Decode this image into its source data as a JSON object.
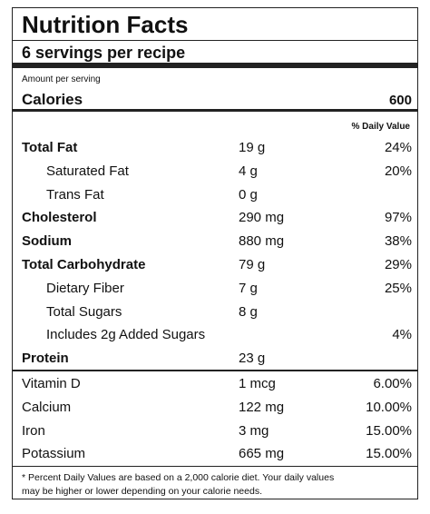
{
  "title": "Nutrition Facts",
  "servings": "6 servings per recipe",
  "amount_label": "Amount per serving",
  "calories": {
    "label": "Calories",
    "value": "600"
  },
  "dv_header": "% Daily Value",
  "nutrients": [
    {
      "name": "Total Fat",
      "amount": "19 g",
      "dv": "24%",
      "sub": [
        {
          "name": "Saturated Fat",
          "amount": "4 g",
          "dv": "20%"
        },
        {
          "name": "Trans Fat",
          "amount": "0 g"
        }
      ]
    },
    {
      "name": "Cholesterol",
      "amount": "290 mg",
      "dv": "97%"
    },
    {
      "name": "Sodium",
      "amount": "880 mg",
      "dv": "38%"
    },
    {
      "name": "Total Carbohydrate",
      "amount": "79 g",
      "dv": "29%",
      "sub": [
        {
          "name": "Dietary Fiber",
          "amount": "7 g",
          "dv": "25%"
        },
        {
          "name": "Total Sugars",
          "amount": "8 g"
        },
        {
          "name": "Includes 2g Added Sugars",
          "dv": "4%"
        }
      ]
    },
    {
      "name": "Protein",
      "amount": "23 g"
    }
  ],
  "vitamins": [
    {
      "name": "Vitamin D",
      "amount": "1 mcg",
      "dv": "6.00%"
    },
    {
      "name": "Calcium",
      "amount": "122 mg",
      "dv": "10.00%"
    },
    {
      "name": "Iron",
      "amount": "3 mg",
      "dv": "15.00%"
    },
    {
      "name": "Potassium",
      "amount": "665 mg",
      "dv": "15.00%"
    }
  ],
  "footnote": [
    "* Percent Daily Values are based on a 2,000 calorie diet. Your daily values",
    "may be higher or lower depending on your calorie needs."
  ]
}
